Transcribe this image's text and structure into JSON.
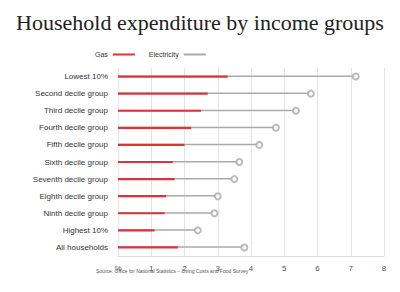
{
  "chart_data": {
    "type": "bar",
    "orientation": "horizontal",
    "title": "Household expenditure by income groups",
    "annotations": [
      "Source: Office for National Statistics – Living Costs and Food Survey"
    ],
    "categories": [
      "Lowest 10%",
      "Second decile group",
      "Third decile group",
      "Fourth decile group",
      "Fifth decile group",
      "Sixth decile group",
      "Seventh decile group",
      "Eighth decile group",
      "Ninth decile group",
      "Highest 10%",
      "All households"
    ],
    "series": [
      {
        "name": "Gas",
        "color": "#d9353f",
        "values": [
          3.3,
          2.7,
          2.5,
          2.2,
          2.0,
          1.65,
          1.7,
          1.45,
          1.4,
          1.1,
          1.8
        ]
      },
      {
        "name": "Electricity",
        "color": "#aaaaaa",
        "marker": "circle",
        "values": [
          7.15,
          5.8,
          5.35,
          4.75,
          4.25,
          3.65,
          3.5,
          3.0,
          2.9,
          2.4,
          3.8
        ]
      }
    ],
    "xlim": [
      0,
      8
    ],
    "xticks": [
      {
        "value": 0,
        "label": "%"
      },
      1,
      2,
      3,
      4,
      5,
      6,
      7,
      8
    ],
    "grid": true,
    "legend": "top-left"
  }
}
